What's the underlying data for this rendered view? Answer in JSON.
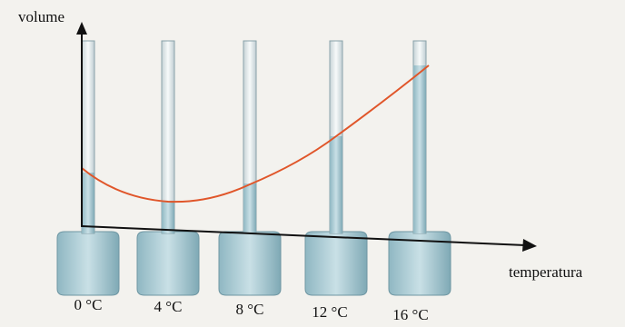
{
  "axes": {
    "y_label": "volume",
    "x_label": "temperatura"
  },
  "flasks": [
    {
      "label": "0 °C"
    },
    {
      "label": "4 °C"
    },
    {
      "label": "8 °C"
    },
    {
      "label": "12 °C"
    },
    {
      "label": "16 °C"
    }
  ]
}
